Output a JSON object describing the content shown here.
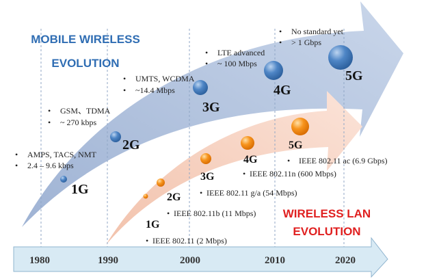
{
  "mobile": {
    "title_line1": "MOBILE WIRELESS",
    "title_line2": "EVOLUTION",
    "color": "#2f6db3",
    "generations": [
      {
        "label": "1G",
        "bullets": [
          "AMPS, TACS, NMT",
          "2.4 – 9.6 kbps"
        ]
      },
      {
        "label": "2G",
        "bullets": [
          "GSM、TDMA",
          "~ 270 kbps"
        ]
      },
      {
        "label": "3G",
        "bullets": [
          "UMTS, WCDMA",
          "~14.4 Mbps"
        ]
      },
      {
        "label": "4G",
        "bullets": [
          "LTE advanced",
          "~ 100 Mbps"
        ]
      },
      {
        "label": "5G",
        "bullets": [
          "No standard yet",
          "> 1 Gbps"
        ]
      }
    ]
  },
  "wlan": {
    "title_line1": "WIRELESS LAN",
    "title_line2": "EVOLUTION",
    "color": "#e02020",
    "generations": [
      {
        "label": "1G",
        "standard": "IEEE 802.11 (2 Mbps)"
      },
      {
        "label": "2G",
        "standard": "IEEE 802.11b (11 Mbps)"
      },
      {
        "label": "3G",
        "standard": "IEEE 802.11 g/a (54 Mbps)"
      },
      {
        "label": "4G",
        "standard": "IEEE 802.11n (600 Mbps)"
      },
      {
        "label": "5G",
        "standard": "IEEE 802.11 ac (6.9 Gbps)"
      }
    ]
  },
  "timeline": {
    "years": [
      "1980",
      "1990",
      "2000",
      "2010",
      "2020"
    ]
  },
  "bullet": "•"
}
